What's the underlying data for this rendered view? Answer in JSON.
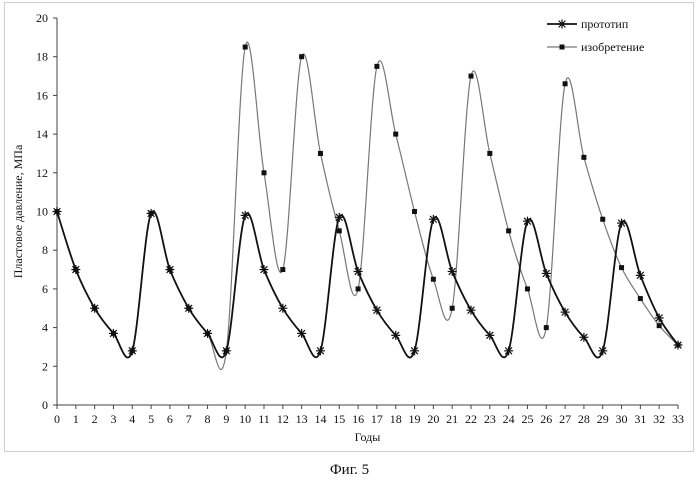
{
  "caption": "Фиг. 5",
  "chart_data": {
    "type": "line",
    "title": "",
    "xlabel": "Годы",
    "ylabel": "Пластовое давление, МПа",
    "xlim": [
      0,
      33
    ],
    "ylim": [
      0,
      20
    ],
    "x_ticks": [
      0,
      1,
      2,
      3,
      4,
      5,
      6,
      7,
      8,
      9,
      10,
      11,
      12,
      13,
      14,
      15,
      16,
      17,
      18,
      19,
      20,
      21,
      22,
      23,
      24,
      25,
      26,
      27,
      28,
      29,
      30,
      31,
      32,
      33
    ],
    "y_ticks": [
      0,
      2,
      4,
      6,
      8,
      10,
      12,
      14,
      16,
      18,
      20
    ],
    "grid": false,
    "legend_position": "top-right",
    "series": [
      {
        "name": "прототип",
        "marker": "asterisk",
        "color": "#111111",
        "x": [
          0,
          1,
          2,
          3,
          4,
          5,
          6,
          7,
          8,
          9,
          10,
          11,
          12,
          13,
          14,
          15,
          16,
          17,
          18,
          19,
          20,
          21,
          22,
          23,
          24,
          25,
          26,
          27,
          28,
          29,
          30,
          31,
          32,
          33
        ],
        "y": [
          10,
          7,
          5,
          3.7,
          2.8,
          9.9,
          7,
          5,
          3.7,
          2.8,
          9.8,
          7,
          5,
          3.7,
          2.8,
          9.7,
          6.9,
          4.9,
          3.6,
          2.8,
          9.6,
          6.9,
          4.9,
          3.6,
          2.8,
          9.5,
          6.8,
          4.8,
          3.5,
          2.8,
          9.4,
          6.7,
          4.5,
          3.1
        ]
      },
      {
        "name": "изобретение",
        "marker": "square",
        "color": "#777777",
        "x": [
          0,
          1,
          2,
          3,
          4,
          5,
          6,
          7,
          8,
          9,
          10,
          11,
          12,
          13,
          14,
          15,
          16,
          17,
          18,
          19,
          20,
          21,
          22,
          23,
          24,
          25,
          26,
          27,
          28,
          29,
          30,
          31,
          32,
          33
        ],
        "y": [
          10,
          7,
          5,
          3.7,
          2.8,
          9.9,
          7,
          5,
          3.7,
          2.8,
          18.5,
          12,
          7,
          18,
          13,
          9,
          6,
          17.5,
          14,
          10,
          6.5,
          5,
          17,
          13,
          9,
          6,
          4,
          16.6,
          12.8,
          9.6,
          7.1,
          5.5,
          4.1,
          3.1
        ]
      }
    ]
  }
}
